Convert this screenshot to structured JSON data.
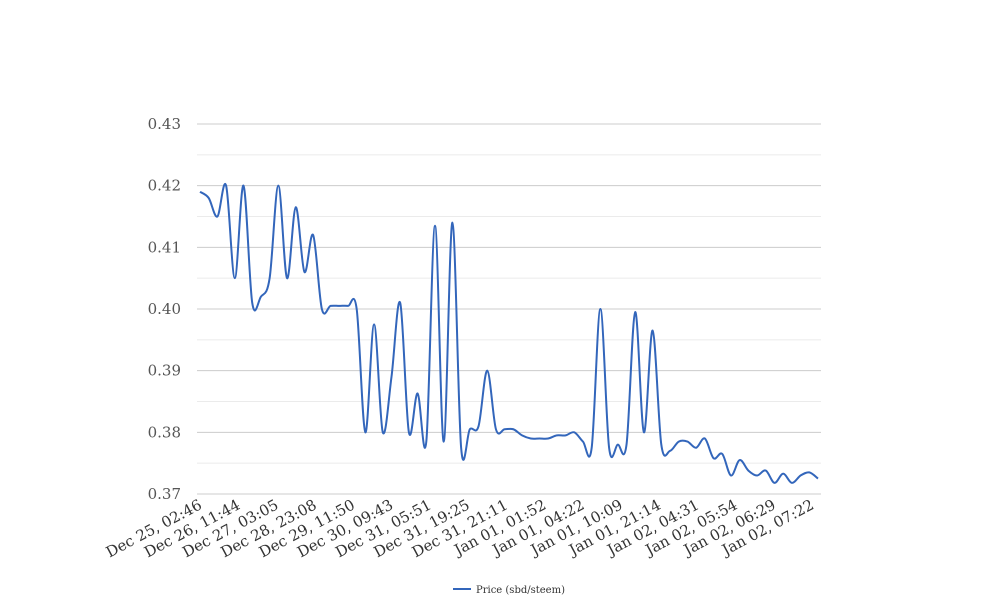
{
  "chart_data": {
    "type": "line",
    "title": "",
    "xlabel": "",
    "ylabel": "",
    "ylim": [
      0.37,
      0.43
    ],
    "yticks": [
      "0.43",
      "0.42",
      "0.41",
      "0.40",
      "0.39",
      "0.38",
      "0.37"
    ],
    "xtick_labels": [
      "Dec 25, 02:46",
      "Dec 26, 11:44",
      "Dec 27, 03:05",
      "Dec 28, 23:08",
      "Dec 29, 11:50",
      "Dec 30, 09:43",
      "Dec 31, 05:51",
      "Dec 31, 19:25",
      "Dec 31, 21:11",
      "Jan 01, 01:52",
      "Jan 01, 04:22",
      "Jan 01, 10:09",
      "Jan 01, 21:14",
      "Jan 02, 04:31",
      "Jan 02, 05:54",
      "Jan 02, 06:29",
      "Jan 02, 07:22"
    ],
    "grid": true,
    "legend_position": "bottom",
    "series": [
      {
        "name": "Price (sbd/steem)",
        "color": "#3366bb",
        "values": [
          0.419,
          0.418,
          0.415,
          0.42,
          0.405,
          0.42,
          0.401,
          0.402,
          0.405,
          0.42,
          0.405,
          0.4165,
          0.406,
          0.412,
          0.4,
          0.4005,
          0.4005,
          0.4005,
          0.4,
          0.38,
          0.3975,
          0.38,
          0.389,
          0.401,
          0.38,
          0.3863,
          0.3785,
          0.4135,
          0.3785,
          0.414,
          0.3775,
          0.3805,
          0.381,
          0.39,
          0.3805,
          0.3805,
          0.3805,
          0.3795,
          0.379,
          0.379,
          0.379,
          0.3795,
          0.3795,
          0.38,
          0.3785,
          0.3775,
          0.4,
          0.3775,
          0.378,
          0.378,
          0.3995,
          0.38,
          0.3965,
          0.378,
          0.377,
          0.3785,
          0.3785,
          0.3775,
          0.379,
          0.3758,
          0.3765,
          0.373,
          0.3755,
          0.3738,
          0.373,
          0.3738,
          0.3718,
          0.3733,
          0.3718,
          0.373,
          0.3735,
          0.3725
        ]
      }
    ]
  }
}
